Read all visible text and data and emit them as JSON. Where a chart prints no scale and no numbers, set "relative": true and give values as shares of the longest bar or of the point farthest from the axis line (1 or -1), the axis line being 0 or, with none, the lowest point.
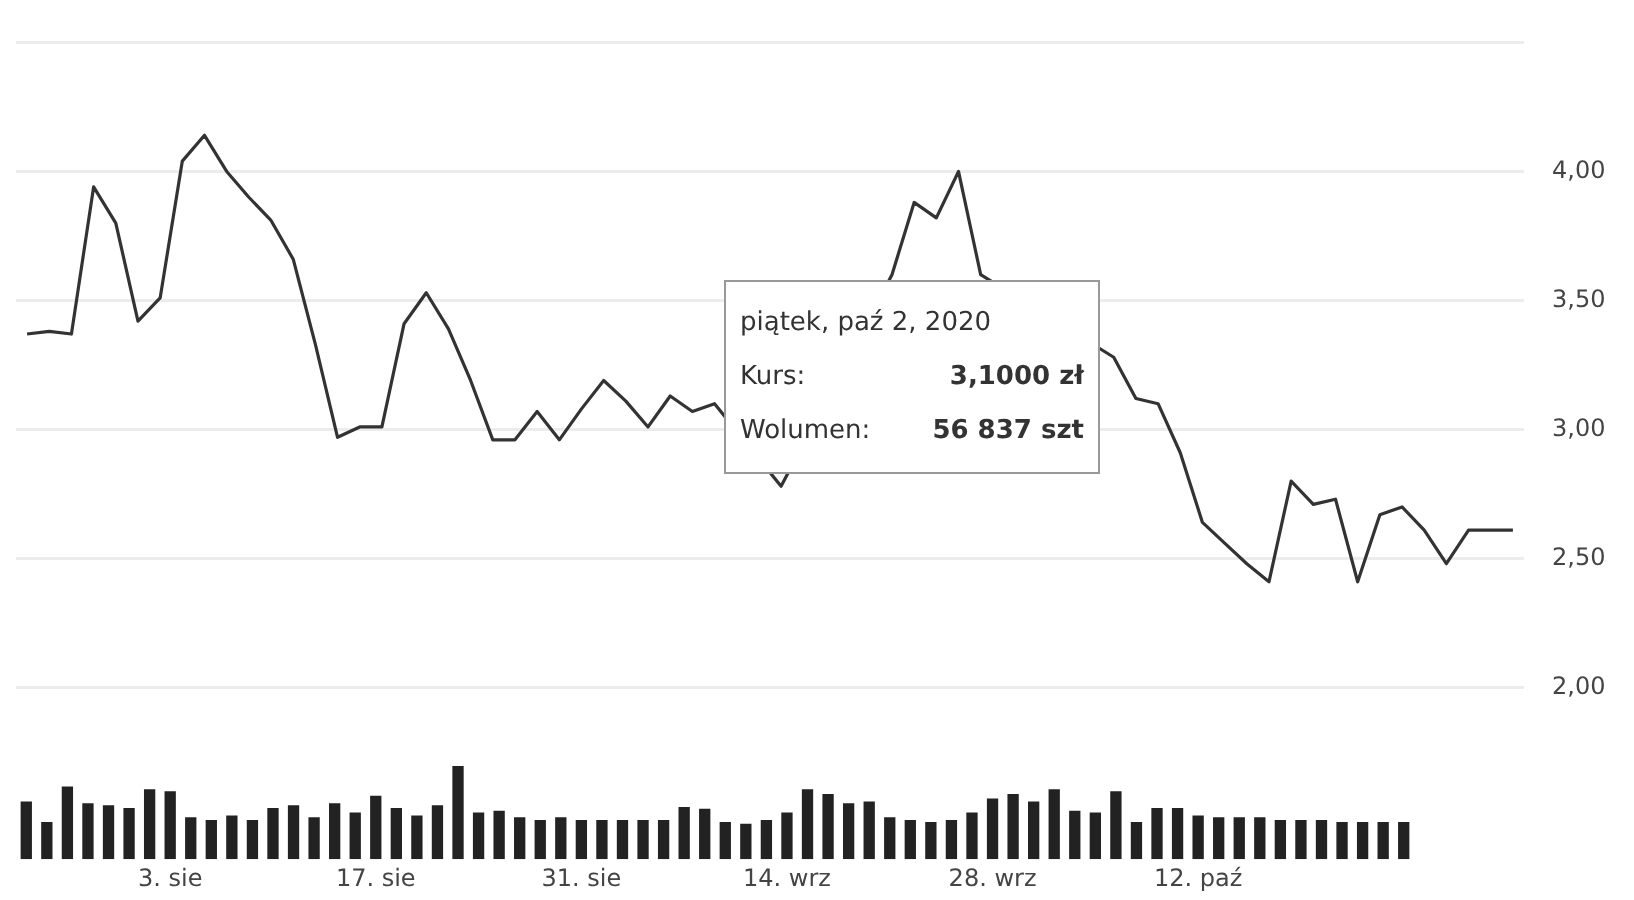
{
  "chart_data": [
    {
      "type": "line",
      "categories": [
        null,
        null,
        null,
        null,
        null,
        null,
        null,
        null,
        null,
        null,
        null,
        null,
        null,
        null,
        null,
        null,
        null,
        null,
        null,
        null,
        null,
        null,
        null,
        null,
        null,
        null,
        null,
        null,
        null,
        null,
        null,
        null,
        null,
        null,
        null,
        null,
        null,
        null,
        null,
        null,
        null,
        null,
        null,
        null,
        null,
        null,
        null,
        null,
        null,
        null,
        null,
        null,
        null,
        null,
        null,
        null,
        null,
        null,
        null,
        null,
        null,
        null,
        null,
        null,
        null,
        null,
        null,
        null
      ],
      "series": [
        {
          "color": "#333333",
          "values": [
            3.37,
            3.38,
            3.37,
            3.94,
            3.8,
            3.42,
            3.51,
            4.04,
            4.14,
            4.0,
            3.9,
            3.81,
            3.66,
            3.33,
            2.97,
            3.01,
            3.01,
            3.41,
            3.53,
            3.39,
            3.19,
            2.96,
            2.96,
            3.07,
            2.96,
            3.08,
            3.19,
            3.11,
            3.01,
            3.13,
            3.07,
            3.1,
            null,
            null,
            2.78,
            null,
            null,
            null,
            null,
            3.6,
            3.88,
            3.82,
            4.0,
            3.6,
            null,
            null,
            null,
            null,
            null,
            3.28,
            3.12,
            3.1,
            2.91,
            2.64,
            2.56,
            2.48,
            2.41,
            2.8,
            2.71,
            2.73,
            2.41,
            2.67,
            2.7,
            2.61,
            2.48,
            2.61,
            2.61,
            2.61
          ]
        }
      ],
      "ylim": [
        2,
        4.5
      ],
      "yticks": [
        {
          "value": 2,
          "label": "2,00"
        },
        {
          "value": 2.5,
          "label": "2,50"
        },
        {
          "value": 3,
          "label": "3,00"
        },
        {
          "value": 3.5,
          "label": "3,50"
        },
        {
          "value": 4,
          "label": "4,00"
        },
        {
          "value": 4.5,
          "label": null
        }
      ],
      "grid": "y",
      "tick_labels": "y",
      "marker": "none",
      "line_style": "solid",
      "annotations": [
        "piątek, paź 2, 2020",
        "Kurs: 3,1000 zł",
        "Wolumen: 56 837 szt"
      ]
    },
    {
      "type": "bar",
      "relative": true,
      "tick_labels": "x",
      "categories": [
        null,
        null,
        null,
        null,
        null,
        null,
        null,
        "3. sie",
        null,
        null,
        null,
        null,
        null,
        null,
        null,
        null,
        null,
        "17. sie",
        null,
        null,
        null,
        null,
        null,
        null,
        null,
        null,
        null,
        "31. sie",
        null,
        null,
        null,
        null,
        null,
        null,
        null,
        null,
        null,
        "14. wrz",
        null,
        null,
        null,
        null,
        null,
        null,
        null,
        null,
        null,
        "28. wrz",
        null,
        null,
        null,
        null,
        null,
        null,
        null,
        null,
        null,
        "12. paź",
        null,
        null,
        null,
        null,
        null,
        null,
        null,
        null,
        null,
        null
      ],
      "color": "#222222",
      "values": [
        0.62,
        0.4,
        0.78,
        0.6,
        0.58,
        0.55,
        0.75,
        0.73,
        0.45,
        0.42,
        0.47,
        0.42,
        0.55,
        0.58,
        0.45,
        0.6,
        0.5,
        0.68,
        0.55,
        0.47,
        0.58,
        1.0,
        0.5,
        0.52,
        0.45,
        0.42,
        0.45,
        0.42,
        0.42,
        0.42,
        0.42,
        0.42,
        0.56,
        0.54,
        0.4,
        0.38,
        0.42,
        0.5,
        0.75,
        0.7,
        0.6,
        0.62,
        0.45,
        0.42,
        0.4,
        0.42,
        0.5,
        0.65,
        0.7,
        0.62,
        0.75,
        0.52,
        0.5,
        0.73,
        0.4,
        0.55,
        0.55,
        0.47,
        0.45,
        0.45,
        0.45,
        0.42,
        0.42,
        0.42,
        0.4,
        0.4,
        0.4,
        0.4
      ]
    }
  ]
}
